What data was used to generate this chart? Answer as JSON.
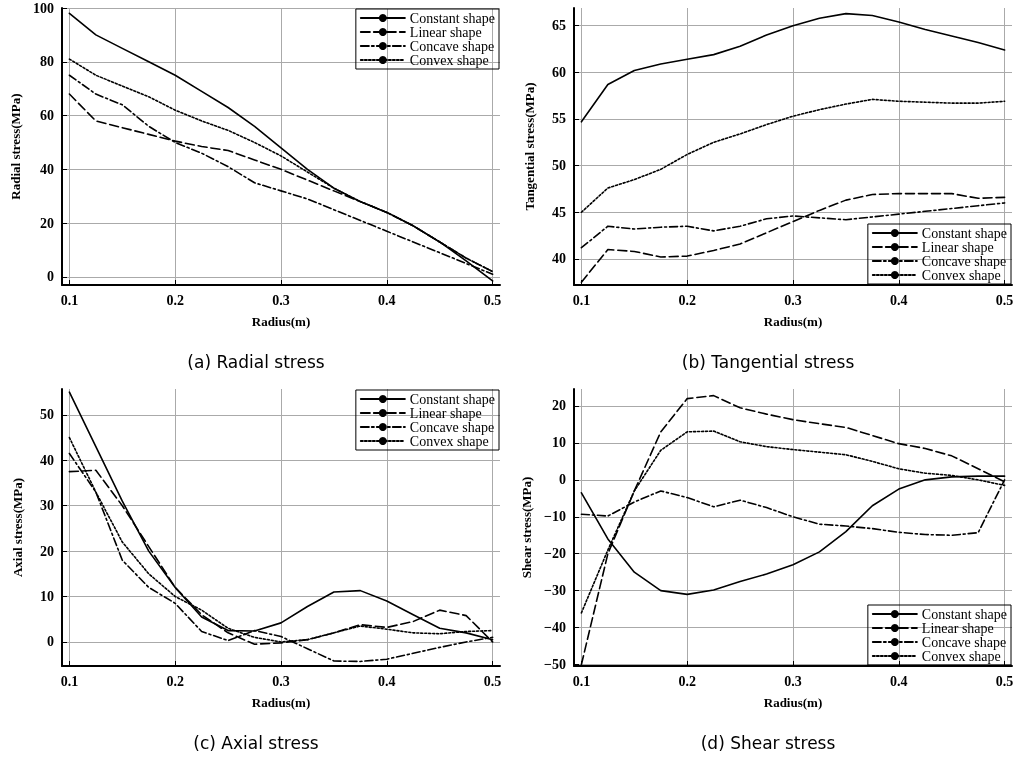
{
  "chart_data": [
    {
      "type": "line",
      "title": "(a) Radial stress",
      "xlabel": "Radius(m)",
      "ylabel": "Radial stress(MPa)",
      "x": [
        0.1,
        0.125,
        0.15,
        0.175,
        0.2,
        0.225,
        0.25,
        0.275,
        0.3,
        0.325,
        0.35,
        0.375,
        0.4,
        0.425,
        0.45,
        0.475,
        0.5
      ],
      "xlim": [
        0.093,
        0.507
      ],
      "xticks": [
        0.1,
        0.2,
        0.3,
        0.4,
        0.5
      ],
      "ylim": [
        -3,
        100
      ],
      "yticks": [
        0,
        20,
        40,
        60,
        80,
        100
      ],
      "grid": true,
      "legend": "top right",
      "series": [
        {
          "name": "Constant shape",
          "color": "#000000",
          "line_style": "solid",
          "values": [
            98,
            90,
            85,
            80,
            75,
            69,
            63,
            56,
            48,
            40,
            33,
            28,
            24,
            19,
            13,
            6,
            -1.5
          ]
        },
        {
          "name": "Linear shape",
          "color": "#000000",
          "line_style": "dashed",
          "values": [
            68,
            58,
            55.5,
            53,
            50.5,
            48.5,
            47,
            43.5,
            40,
            36,
            32,
            28,
            24,
            19,
            13,
            7,
            2
          ]
        },
        {
          "name": "Concave shape",
          "color": "#000000",
          "line_style": "dashdot",
          "values": [
            75,
            68,
            64,
            56,
            50,
            46,
            41,
            35,
            32,
            29,
            25,
            21,
            17,
            13,
            9,
            5,
            1
          ]
        },
        {
          "name": "Convex shape",
          "color": "#000000",
          "line_style": "dotted",
          "values": [
            81,
            75,
            71,
            67,
            62,
            58,
            54.5,
            50,
            45,
            39,
            33,
            28,
            24,
            19,
            13,
            7,
            2
          ]
        }
      ]
    },
    {
      "type": "line",
      "title": "(b) Tangential stress",
      "xlabel": "Radius(m)",
      "ylabel": "Tangential stress(MPa)",
      "x": [
        0.1,
        0.125,
        0.15,
        0.175,
        0.2,
        0.225,
        0.25,
        0.275,
        0.3,
        0.325,
        0.35,
        0.375,
        0.4,
        0.425,
        0.45,
        0.475,
        0.5
      ],
      "xlim": [
        0.093,
        0.507
      ],
      "xticks": [
        0.1,
        0.2,
        0.3,
        0.4,
        0.5
      ],
      "ylim": [
        37.2,
        66.9
      ],
      "yticks": [
        40,
        45,
        50,
        55,
        60,
        65
      ],
      "grid": true,
      "legend": "bottom right",
      "series": [
        {
          "name": "Constant shape",
          "color": "#000000",
          "line_style": "solid",
          "values": [
            54.7,
            58.7,
            60.2,
            60.9,
            61.4,
            61.9,
            62.8,
            64,
            65,
            65.8,
            66.3,
            66.1,
            65.4,
            64.6,
            63.9,
            63.2,
            62.4
          ]
        },
        {
          "name": "Linear shape",
          "color": "#000000",
          "line_style": "dashed",
          "values": [
            37.5,
            41,
            40.8,
            40.2,
            40.3,
            40.9,
            41.6,
            42.8,
            44,
            45.2,
            46.3,
            46.9,
            47,
            47,
            47,
            46.5,
            46.6
          ]
        },
        {
          "name": "Concave shape",
          "color": "#000000",
          "line_style": "dashdot",
          "values": [
            41.2,
            43.5,
            43.2,
            43.4,
            43.5,
            43,
            43.5,
            44.3,
            44.6,
            44.4,
            44.2,
            44.5,
            44.8,
            45.1,
            45.4,
            45.7,
            46
          ]
        },
        {
          "name": "Convex shape",
          "color": "#000000",
          "line_style": "dotted",
          "values": [
            45,
            47.6,
            48.5,
            49.6,
            51.2,
            52.5,
            53.4,
            54.4,
            55.3,
            56,
            56.6,
            57.1,
            56.9,
            56.8,
            56.7,
            56.7,
            56.9
          ]
        }
      ]
    },
    {
      "type": "line",
      "title": "(c) Axial stress",
      "xlabel": "Radius(m)",
      "ylabel": "Axial stress(MPa)",
      "x": [
        0.1,
        0.125,
        0.15,
        0.175,
        0.2,
        0.225,
        0.25,
        0.275,
        0.3,
        0.325,
        0.35,
        0.375,
        0.4,
        0.425,
        0.45,
        0.475,
        0.5
      ],
      "xlim": [
        0.093,
        0.507
      ],
      "xticks": [
        0.1,
        0.2,
        0.3,
        0.4,
        0.5
      ],
      "ylim": [
        -5.3,
        55.7
      ],
      "yticks": [
        0,
        10,
        20,
        30,
        40,
        50
      ],
      "grid": true,
      "legend": "top right",
      "series": [
        {
          "name": "Constant shape",
          "color": "#000000",
          "line_style": "solid",
          "values": [
            55,
            43,
            31,
            20,
            12,
            5.5,
            2.5,
            2.4,
            4.2,
            7.8,
            11,
            11.3,
            9,
            6,
            3,
            2,
            0.5
          ]
        },
        {
          "name": "Linear shape",
          "color": "#000000",
          "line_style": "dashed",
          "values": [
            37.5,
            37.8,
            30,
            21,
            12,
            6,
            2,
            -0.5,
            -0.2,
            0.5,
            2,
            3.8,
            3.2,
            4.5,
            7,
            5.8,
            0
          ]
        },
        {
          "name": "Concave shape",
          "color": "#000000",
          "line_style": "dashdot",
          "values": [
            41.5,
            33,
            18,
            12,
            8.5,
            2.3,
            0.3,
            2.5,
            1.2,
            -1.5,
            -4.2,
            -4.3,
            -3.8,
            -2.5,
            -1.2,
            0,
            1
          ]
        },
        {
          "name": "Convex shape",
          "color": "#000000",
          "line_style": "dotted",
          "values": [
            45,
            33,
            22,
            15,
            10,
            7,
            3,
            1,
            0,
            0.5,
            2,
            3.5,
            2.8,
            2,
            1.8,
            2.3,
            2.5
          ]
        }
      ]
    },
    {
      "type": "line",
      "title": "(d) Shear stress",
      "xlabel": "Radius(m)",
      "ylabel": "Shear stress(MPa)",
      "x": [
        0.1,
        0.125,
        0.15,
        0.175,
        0.2,
        0.225,
        0.25,
        0.275,
        0.3,
        0.325,
        0.35,
        0.375,
        0.4,
        0.425,
        0.45,
        0.475,
        0.5
      ],
      "xlim": [
        0.093,
        0.507
      ],
      "xticks": [
        0.1,
        0.2,
        0.3,
        0.4,
        0.5
      ],
      "ylim": [
        -50.4,
        24.6
      ],
      "yticks": [
        {
          "value": -50,
          "label": "−50"
        },
        {
          "value": -40,
          "label": "−40"
        },
        {
          "value": -30,
          "label": "−30"
        },
        {
          "value": -20,
          "label": "−20"
        },
        {
          "value": -10,
          "label": "−10"
        },
        0,
        10,
        20
      ],
      "grid": true,
      "legend": "bottom right",
      "series": [
        {
          "name": "Constant shape",
          "color": "#000000",
          "line_style": "solid",
          "values": [
            -3.5,
            -16,
            -25,
            -30,
            -31,
            -29.8,
            -27.5,
            -25.5,
            -23,
            -19.5,
            -14,
            -7,
            -2.5,
            0,
            0.8,
            1,
            1
          ]
        },
        {
          "name": "Linear shape",
          "color": "#000000",
          "line_style": "dashed",
          "values": [
            -50,
            -20,
            -3,
            13,
            22,
            22.8,
            19.5,
            17.8,
            16.3,
            15.2,
            14.2,
            12,
            9.8,
            8.5,
            6.5,
            3,
            -0.5
          ]
        },
        {
          "name": "Concave shape",
          "color": "#000000",
          "line_style": "dashdot",
          "values": [
            -9.3,
            -9.8,
            -6,
            -3,
            -4.8,
            -7.3,
            -5.5,
            -7.5,
            -10,
            -12,
            -12.5,
            -13.2,
            -14.2,
            -14.8,
            -15,
            -14.3,
            0
          ]
        },
        {
          "name": "Convex shape",
          "color": "#000000",
          "line_style": "dotted",
          "values": [
            -36,
            -19,
            -3,
            8,
            13,
            13.2,
            10.3,
            9,
            8.2,
            7.5,
            6.8,
            5,
            3,
            1.8,
            1.2,
            0,
            -1.5
          ]
        }
      ]
    }
  ]
}
